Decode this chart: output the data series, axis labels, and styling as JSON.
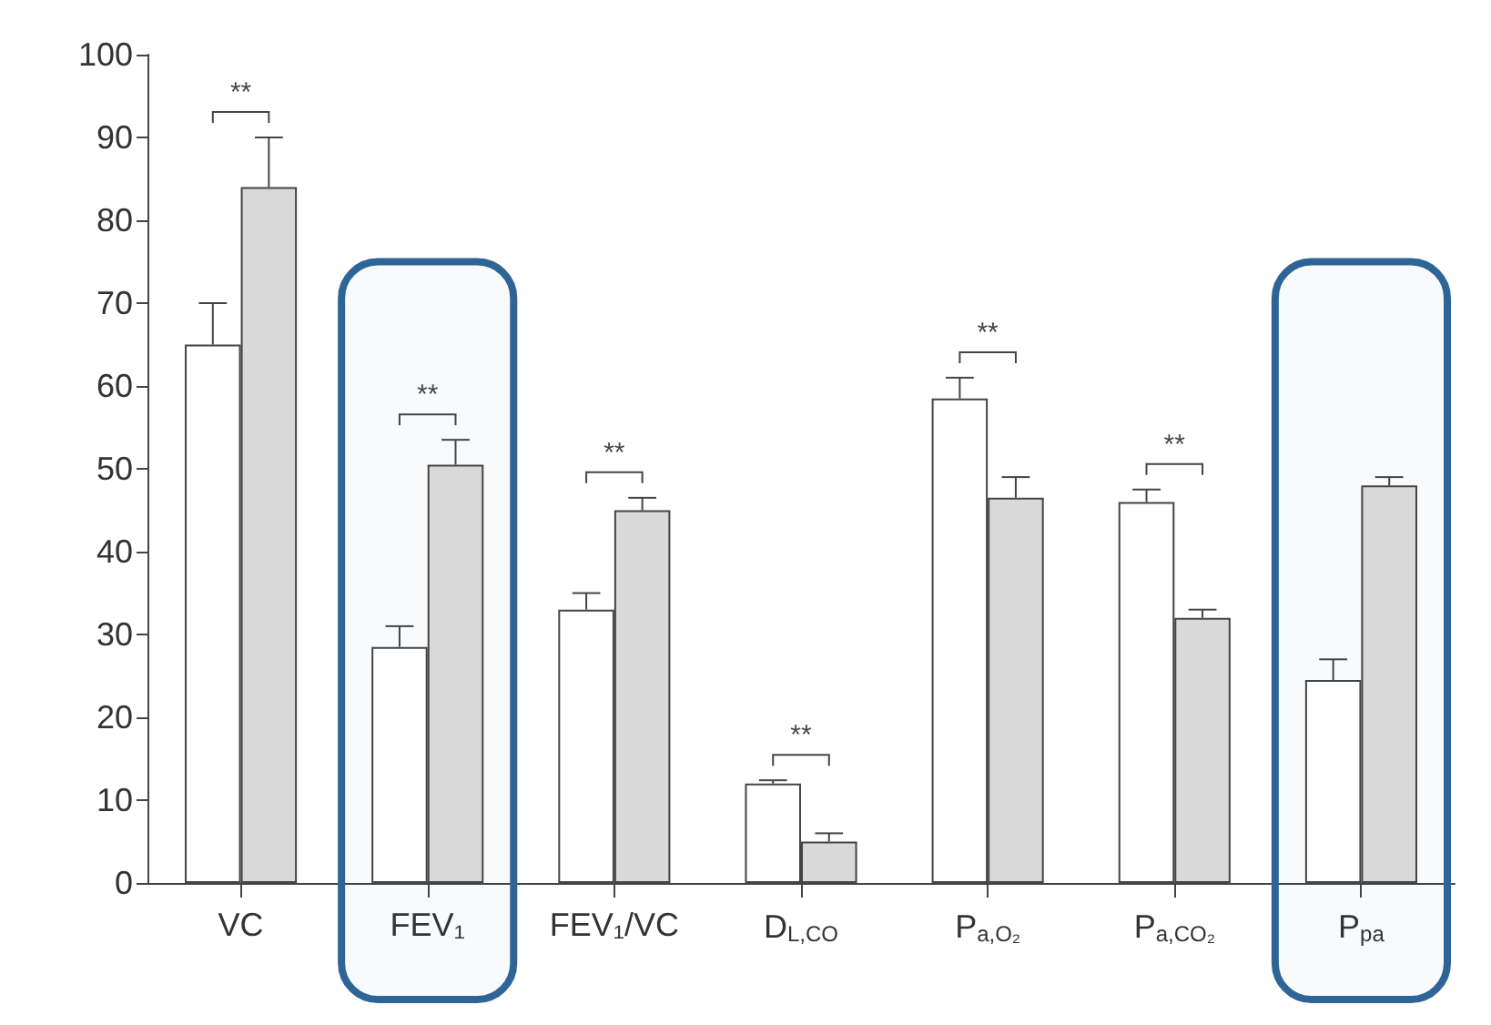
{
  "chart_data": {
    "type": "bar",
    "categories": [
      "VC",
      "FEV₁",
      "FEV₁/VC",
      "D$_{L,CO}$",
      "P$_{a,O₂}$",
      "P$_{a,CO₂}$",
      "P$_{pa}$"
    ],
    "series": [
      {
        "color": "#ffffff",
        "values": [
          65,
          28.5,
          33,
          12,
          58.5,
          46,
          24.5
        ],
        "errors": [
          [
            65,
            70
          ],
          [
            28.5,
            31
          ],
          [
            33,
            35
          ],
          [
            12,
            12.4
          ],
          [
            58.5,
            61
          ],
          [
            46,
            47.5
          ],
          [
            24.5,
            27
          ]
        ]
      },
      {
        "color": "#d9d9d9",
        "values": [
          84,
          50.5,
          45,
          5,
          46.5,
          32,
          48
        ],
        "errors": [
          [
            84,
            90
          ],
          [
            50.5,
            53.5
          ],
          [
            45,
            46.5
          ],
          [
            5,
            6
          ],
          [
            46.5,
            49
          ],
          [
            32,
            33
          ],
          [
            48,
            49
          ]
        ]
      }
    ],
    "ylim": [
      0,
      100
    ],
    "yticks": [
      0,
      10,
      20,
      30,
      40,
      50,
      60,
      70,
      80,
      90,
      100
    ],
    "grid": false,
    "annotations": [
      "**",
      "**",
      "**",
      "**",
      "**",
      "**"
    ],
    "bands": [
      {
        "axis": "x",
        "from": "FEV₁",
        "to": "FEV₁",
        "color": "#2e6596"
      },
      {
        "axis": "x",
        "from": "P$_{pa}$",
        "to": "P$_{pa}$",
        "color": "#2e6596"
      }
    ]
  }
}
